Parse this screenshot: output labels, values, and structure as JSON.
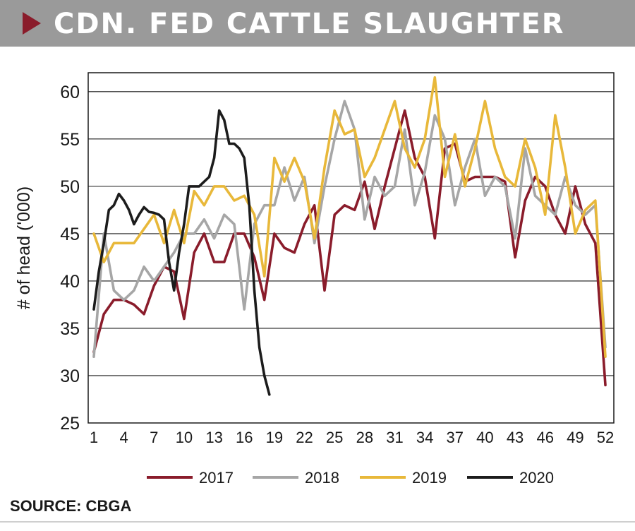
{
  "header": {
    "title": "CDN. FED CATTLE SLAUGHTER"
  },
  "footer": {
    "source": "SOURCE: CBGA"
  },
  "chart_data": {
    "type": "line",
    "title": "CDN. FED CATTLE SLAUGHTER",
    "ylabel": "# of head ('000)",
    "xlabel": "",
    "xlim": [
      1,
      52
    ],
    "ylim": [
      25,
      62
    ],
    "yticks": [
      25,
      30,
      35,
      40,
      45,
      50,
      55,
      60
    ],
    "xticks": [
      1,
      4,
      7,
      10,
      13,
      16,
      19,
      22,
      25,
      28,
      31,
      34,
      37,
      40,
      43,
      46,
      49,
      52
    ],
    "grid": "horizontal",
    "legend": "bottom",
    "series": [
      {
        "name": "2017",
        "color": "#8a1c2b",
        "x": [
          1,
          2,
          3,
          4,
          5,
          6,
          7,
          8,
          9,
          10,
          11,
          12,
          13,
          14,
          15,
          16,
          17,
          18,
          19,
          20,
          21,
          22,
          23,
          24,
          25,
          26,
          27,
          28,
          29,
          30,
          31,
          32,
          33,
          34,
          35,
          36,
          37,
          38,
          39,
          40,
          41,
          42,
          43,
          44,
          45,
          46,
          47,
          48,
          49,
          50,
          51,
          52
        ],
        "values": [
          32.5,
          36.5,
          38,
          38,
          37.5,
          36.5,
          39.5,
          41.5,
          41,
          36,
          43,
          45,
          42,
          42,
          45,
          45,
          42.5,
          38,
          45,
          43.5,
          43,
          46,
          48,
          39,
          47,
          48,
          47.5,
          50.5,
          45.5,
          50,
          54,
          58,
          53,
          51,
          44.5,
          54,
          54.5,
          50.5,
          51,
          51,
          51,
          50.5,
          42.5,
          48.5,
          51,
          50,
          47,
          45,
          50,
          46,
          44,
          29
        ]
      },
      {
        "name": "2018",
        "color": "#a6a6a6",
        "x": [
          1,
          2,
          3,
          4,
          5,
          6,
          7,
          8,
          9,
          10,
          11,
          12,
          13,
          14,
          15,
          16,
          17,
          18,
          19,
          20,
          21,
          22,
          23,
          24,
          25,
          26,
          27,
          28,
          29,
          30,
          31,
          32,
          33,
          34,
          35,
          36,
          37,
          38,
          39,
          40,
          41,
          42,
          43,
          44,
          45,
          46,
          47,
          48,
          49,
          50,
          51,
          52
        ],
        "values": [
          32,
          45,
          39,
          38,
          39,
          41.5,
          40,
          41.5,
          43,
          45,
          45,
          46.5,
          44.5,
          47,
          46,
          37,
          46,
          48,
          48,
          52,
          48.5,
          51,
          44,
          50,
          55,
          59,
          56,
          46.5,
          51,
          49,
          50,
          56,
          48,
          51.5,
          57.5,
          55,
          48,
          52,
          55,
          49,
          51,
          50,
          44.5,
          54,
          49,
          48,
          47,
          51,
          48,
          47,
          48,
          33
        ]
      },
      {
        "name": "2019",
        "color": "#e8b83a",
        "x": [
          1,
          2,
          3,
          4,
          5,
          6,
          7,
          8,
          9,
          10,
          11,
          12,
          13,
          14,
          15,
          16,
          17,
          18,
          19,
          20,
          21,
          22,
          23,
          24,
          25,
          26,
          27,
          28,
          29,
          30,
          31,
          32,
          33,
          34,
          35,
          36,
          37,
          38,
          39,
          40,
          41,
          42,
          43,
          44,
          45,
          46,
          47,
          48,
          49,
          50,
          51,
          52
        ],
        "values": [
          45,
          42,
          44,
          44,
          44,
          45.5,
          47,
          44,
          47.5,
          44,
          49.5,
          48,
          50,
          50,
          48.5,
          49,
          47,
          40.5,
          53,
          50.5,
          53,
          50.5,
          44.5,
          52,
          58,
          55.5,
          56,
          51,
          53,
          56,
          59,
          54,
          52,
          55,
          61.5,
          51,
          55.5,
          50,
          54,
          59,
          54,
          51,
          50,
          55,
          52,
          47,
          57.5,
          52,
          45,
          47.5,
          48.5,
          32
        ]
      },
      {
        "name": "2020",
        "color": "#1c1c1c",
        "x": [
          1,
          1.5,
          2,
          2.5,
          3,
          3.5,
          4,
          4.5,
          5,
          5.5,
          6,
          6.5,
          7,
          7.5,
          8,
          8.5,
          9,
          9.5,
          10,
          10.5,
          11,
          11.5,
          12,
          12.5,
          13,
          13.5,
          14,
          14.5,
          15,
          15.5,
          16,
          16.5,
          17,
          17.5,
          18,
          18.5
        ],
        "values": [
          37,
          41,
          44,
          47.5,
          48,
          49.2,
          48.5,
          47.5,
          46,
          47,
          47.8,
          47.3,
          47.2,
          47,
          46.5,
          42,
          39,
          43,
          46,
          50,
          50,
          50,
          50.5,
          51,
          53,
          58,
          57,
          54.5,
          54.5,
          54,
          53,
          48,
          39,
          33,
          30,
          28
        ]
      }
    ]
  }
}
